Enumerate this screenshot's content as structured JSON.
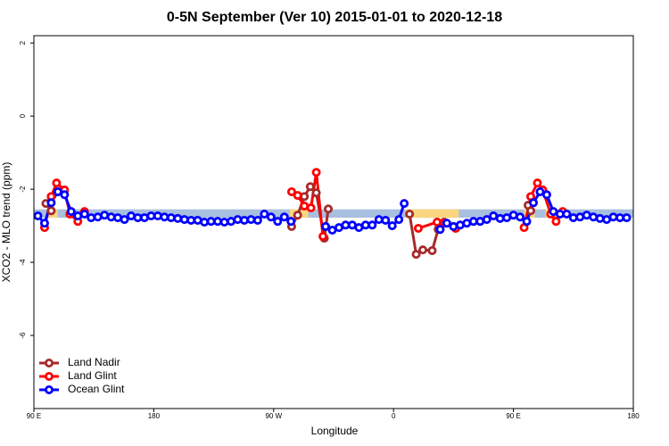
{
  "chart_data": {
    "type": "line",
    "title": "0-5N September (Ver 10)   2015-01-01 to 2020-12-18",
    "x_label": "Longitude",
    "y_label": "XCO2 - MLO trend (ppm)",
    "xlim": [
      90,
      540
    ],
    "ylim": [
      -8,
      2.2
    ],
    "xticks": [
      {
        "value": 90,
        "label": "90 E"
      },
      {
        "value": 180,
        "label": "180"
      },
      {
        "value": 270,
        "label": "90 W"
      },
      {
        "value": 360,
        "label": "0"
      },
      {
        "value": 450,
        "label": "90 E"
      },
      {
        "value": 540,
        "label": "180"
      }
    ],
    "yticks": [
      -6,
      -4,
      -2,
      0,
      2
    ],
    "legend": "bottom-left",
    "bands": [
      {
        "color": "#a9bfe0",
        "x": [
          90,
          540
        ],
        "y": [
          -2.78,
          -2.55
        ]
      },
      {
        "color": "#f9d57f",
        "x": [
          101,
          108
        ],
        "y": [
          -2.78,
          -2.55
        ]
      },
      {
        "color": "#f9d57f",
        "x": [
          282,
          296
        ],
        "y": [
          -2.78,
          -2.55
        ]
      },
      {
        "color": "#f9d57f",
        "x": [
          369,
          409
        ],
        "y": [
          -2.78,
          -2.55
        ]
      },
      {
        "color": "#f9d57f",
        "x": [
          458,
          466
        ],
        "y": [
          -2.78,
          -2.55
        ]
      },
      {
        "color": "#f9d57f",
        "x": [
          474,
          483
        ],
        "y": [
          -2.78,
          -2.55
        ]
      }
    ],
    "series": [
      {
        "name": "Land Nadir",
        "color": "#a52a2a",
        "x": [
          99,
          103,
          200,
          283.5,
          288,
          293,
          297.5,
          302,
          308,
          311,
          340,
          372,
          377,
          382,
          389,
          393.5,
          398,
          430,
          461,
          463
        ],
        "values": [
          -2.39,
          -2.59,
          null,
          -3.02,
          -2.71,
          -2.2,
          -1.93,
          -2.1,
          -3.34,
          -2.54,
          null,
          -2.68,
          -3.78,
          -3.66,
          -3.68,
          -3.1,
          -2.9,
          null,
          -2.44,
          -2.59
        ]
      },
      {
        "name": "Land Glint",
        "color": "#ff0000",
        "x": [
          98,
          103,
          107,
          113,
          117,
          123,
          128,
          200,
          283.5,
          288,
          293,
          298,
          302,
          307,
          340,
          378.6,
          392.7,
          398,
          406.7,
          430,
          458,
          463,
          468,
          472,
          478,
          482,
          487
        ],
        "values": [
          -3.05,
          -2.2,
          -1.83,
          -2.02,
          -2.68,
          -2.88,
          -2.61,
          null,
          -2.07,
          -2.17,
          -2.46,
          -2.51,
          -1.54,
          -3.29,
          null,
          -3.07,
          -2.9,
          -2.93,
          -3.07,
          null,
          -3.05,
          -2.2,
          -1.83,
          -2.02,
          -2.68,
          -2.88,
          -2.61
        ]
      },
      {
        "name": "Ocean Glint",
        "color": "#0000ff",
        "x": [
          93,
          98,
          103,
          108,
          113,
          118,
          123,
          128,
          133,
          138,
          143,
          148,
          153,
          158,
          163,
          168,
          173,
          178,
          183,
          188,
          193,
          198,
          203,
          208,
          213,
          218,
          223,
          228,
          233,
          238,
          243,
          248,
          253,
          258,
          263,
          268,
          273,
          278,
          283,
          296,
          309,
          314,
          319,
          324,
          329,
          334,
          339,
          344,
          349,
          354,
          359,
          364,
          368,
          380,
          395,
          400,
          405,
          410,
          415,
          420,
          425,
          430,
          435,
          440,
          445,
          450,
          455,
          460,
          465,
          470,
          475,
          480,
          485,
          490,
          495,
          500,
          505,
          510,
          515,
          520,
          525,
          530,
          535
        ],
        "values": [
          -2.73,
          -2.93,
          -2.37,
          -2.07,
          -2.15,
          -2.61,
          -2.73,
          -2.68,
          -2.78,
          -2.76,
          -2.71,
          -2.76,
          -2.78,
          -2.83,
          -2.73,
          -2.78,
          -2.78,
          -2.73,
          -2.73,
          -2.76,
          -2.78,
          -2.8,
          -2.83,
          -2.85,
          -2.85,
          -2.9,
          -2.88,
          -2.88,
          -2.9,
          -2.88,
          -2.83,
          -2.85,
          -2.83,
          -2.85,
          -2.68,
          -2.76,
          -2.88,
          -2.76,
          -2.88,
          null,
          -3.02,
          -3.12,
          -3.05,
          -2.98,
          -2.98,
          -3.05,
          -2.98,
          -2.98,
          -2.83,
          -2.85,
          -3.0,
          -2.83,
          -2.39,
          null,
          -3.1,
          -2.93,
          -3.02,
          -2.98,
          -2.93,
          -2.88,
          -2.88,
          -2.83,
          -2.73,
          -2.8,
          -2.78,
          -2.71,
          -2.76,
          -2.88,
          -2.37,
          -2.07,
          -2.15,
          -2.61,
          -2.68,
          -2.68,
          -2.78,
          -2.76,
          -2.71,
          -2.76,
          -2.8,
          -2.83,
          -2.76,
          -2.78,
          -2.78
        ]
      }
    ]
  }
}
